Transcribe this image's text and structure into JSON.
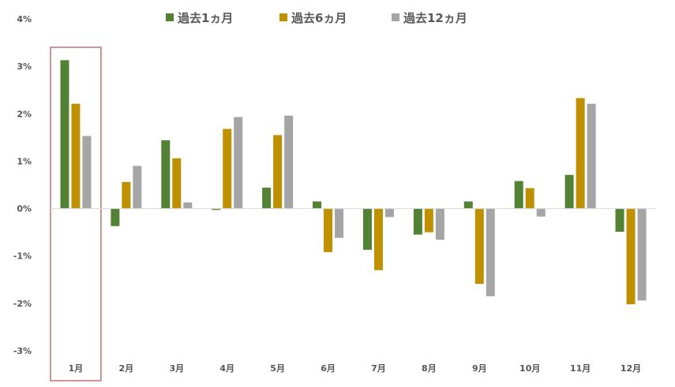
{
  "chart_data": {
    "type": "bar",
    "title": "",
    "xlabel": "",
    "ylabel": "",
    "categories": [
      "1月",
      "2月",
      "3月",
      "4月",
      "5月",
      "6月",
      "7月",
      "8月",
      "9月",
      "10月",
      "11月",
      "12月"
    ],
    "series": [
      {
        "name": "過去1ヵ月",
        "color": "#548235",
        "values": [
          3.13,
          -0.37,
          1.44,
          -0.03,
          0.44,
          0.15,
          -0.87,
          -0.55,
          0.15,
          0.58,
          0.71,
          -0.49
        ]
      },
      {
        "name": "過去6ヵ月",
        "color": "#BF9000",
        "values": [
          2.21,
          0.56,
          1.06,
          1.68,
          1.55,
          -0.92,
          -1.3,
          -0.5,
          -1.59,
          0.43,
          2.33,
          -2.02
        ]
      },
      {
        "name": "過去12ヵ月",
        "color": "#A5A5A5",
        "values": [
          1.53,
          0.9,
          0.13,
          1.93,
          1.96,
          -0.62,
          -0.18,
          -0.66,
          -1.85,
          -0.17,
          2.21,
          -1.94
        ]
      }
    ],
    "ylim": [
      -3,
      4
    ],
    "yticks": [
      "-3%",
      "-2%",
      "-1%",
      "0%",
      "1%",
      "2%",
      "3%",
      "4%"
    ],
    "grid": false,
    "legend_position": "top",
    "highlight": {
      "category": "1月",
      "border_color": "#A52A2A"
    }
  }
}
